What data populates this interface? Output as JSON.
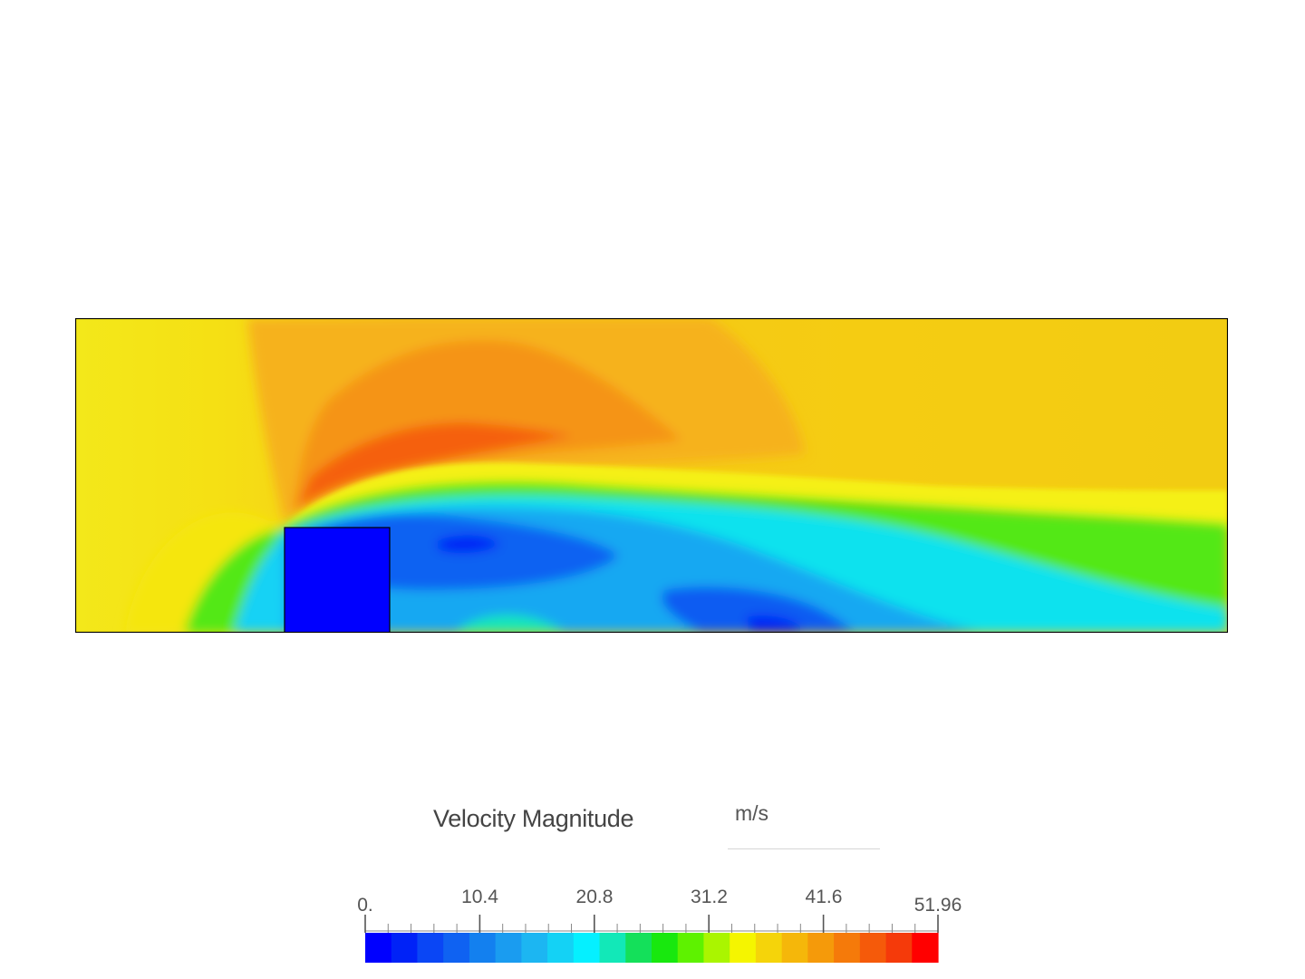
{
  "legend": {
    "title": "Velocity Magnitude",
    "unit": "m/s",
    "min": 0,
    "max": 51.96,
    "tick_labels": [
      "0.",
      "10.4",
      "20.8",
      "31.2",
      "41.6",
      "51.96"
    ],
    "tick_values": [
      0,
      10.4,
      20.8,
      31.2,
      41.6,
      51.96
    ],
    "colors": [
      "#0000ff",
      "#0022f7",
      "#0a46f5",
      "#0f62f2",
      "#1380ef",
      "#1a9cf0",
      "#1cb6f2",
      "#14d2f5",
      "#05f0ff",
      "#12e8b8",
      "#14e05a",
      "#18e80e",
      "#5ef200",
      "#aaf500",
      "#f5f500",
      "#f5d40a",
      "#f5b70a",
      "#f59a0a",
      "#f57a0a",
      "#f55a0a",
      "#f53a0a",
      "#ff0000"
    ]
  },
  "simulation": {
    "result_field": "Velocity Magnitude",
    "inlet_velocity_range": "free stream approx. 36–40",
    "peak_velocity": 51.96
  }
}
